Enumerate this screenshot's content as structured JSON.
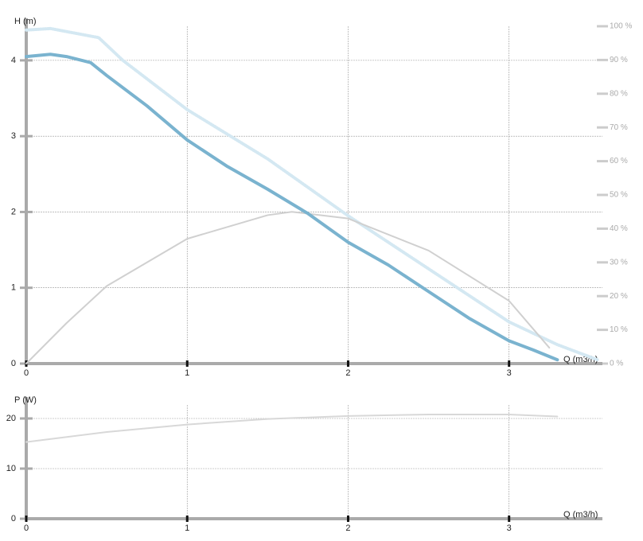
{
  "chart_data": [
    {
      "type": "line",
      "ylabel": "H (m)",
      "xlabel": "Q (m3/h)",
      "xlim": [
        0,
        3.58
      ],
      "xticks": [
        0,
        1,
        2,
        3
      ],
      "ylim": [
        0,
        4.45
      ],
      "yticks": [
        0,
        1,
        2,
        3,
        4
      ],
      "y2lim": [
        0,
        100
      ],
      "y2ticks": [
        {
          "value": 0,
          "label": "0 %"
        },
        {
          "value": 10,
          "label": "10 %"
        },
        {
          "value": 20,
          "label": "20 %"
        },
        {
          "value": 30,
          "label": "30 %"
        },
        {
          "value": 40,
          "label": "40 %"
        },
        {
          "value": 50,
          "label": "50 %"
        },
        {
          "value": 60,
          "label": "60 %"
        },
        {
          "value": 70,
          "label": "70 %"
        },
        {
          "value": 80,
          "label": "80 %"
        },
        {
          "value": 90,
          "label": "90 %"
        },
        {
          "value": 100,
          "label": "100 %"
        }
      ],
      "grid": true,
      "series": [
        {
          "color": "#d4e8f2",
          "style": "dotted",
          "width": 4,
          "x": [
            0,
            0.15,
            0.45,
            0.6,
            1,
            1.5,
            2,
            2.5,
            3,
            3.3,
            3.55
          ],
          "values": [
            4.4,
            4.42,
            4.3,
            4.0,
            3.35,
            2.7,
            1.95,
            1.25,
            0.55,
            0.25,
            0.05
          ]
        },
        {
          "color": "#d0d0d0",
          "style": "solid",
          "width": 2,
          "axis": "y2",
          "x": [
            0,
            0.25,
            0.5,
            1,
            1.5,
            1.65,
            2,
            2.5,
            3,
            3.25
          ],
          "values": [
            0,
            12,
            23,
            37,
            44,
            45,
            43,
            33.5,
            18.6,
            4.7
          ]
        },
        {
          "color": "#7ab3cf",
          "style": "solid",
          "width": 4,
          "x": [
            0,
            0.15,
            0.25,
            0.4,
            0.5,
            0.75,
            1,
            1.25,
            1.5,
            1.75,
            2,
            2.25,
            2.5,
            2.75,
            3,
            3.15,
            3.3
          ],
          "values": [
            4.05,
            4.08,
            4.05,
            3.97,
            3.8,
            3.4,
            2.95,
            2.6,
            2.3,
            1.98,
            1.6,
            1.3,
            0.95,
            0.6,
            0.3,
            0.18,
            0.05
          ]
        }
      ]
    },
    {
      "type": "line",
      "ylabel": "P (W)",
      "xlabel": "Q (m3/h)",
      "xlim": [
        0,
        3.58
      ],
      "xticks": [
        0,
        1,
        2,
        3
      ],
      "ylim": [
        0,
        22.7
      ],
      "yticks": [
        0,
        10,
        20
      ],
      "grid": true,
      "series": [
        {
          "color": "#d8d8d8",
          "style": "solid",
          "width": 2,
          "x": [
            0,
            0.5,
            1,
            1.5,
            2,
            2.5,
            3,
            3.3
          ],
          "values": [
            15.3,
            17.3,
            18.8,
            19.9,
            20.5,
            20.8,
            20.8,
            20.4
          ]
        }
      ]
    }
  ]
}
